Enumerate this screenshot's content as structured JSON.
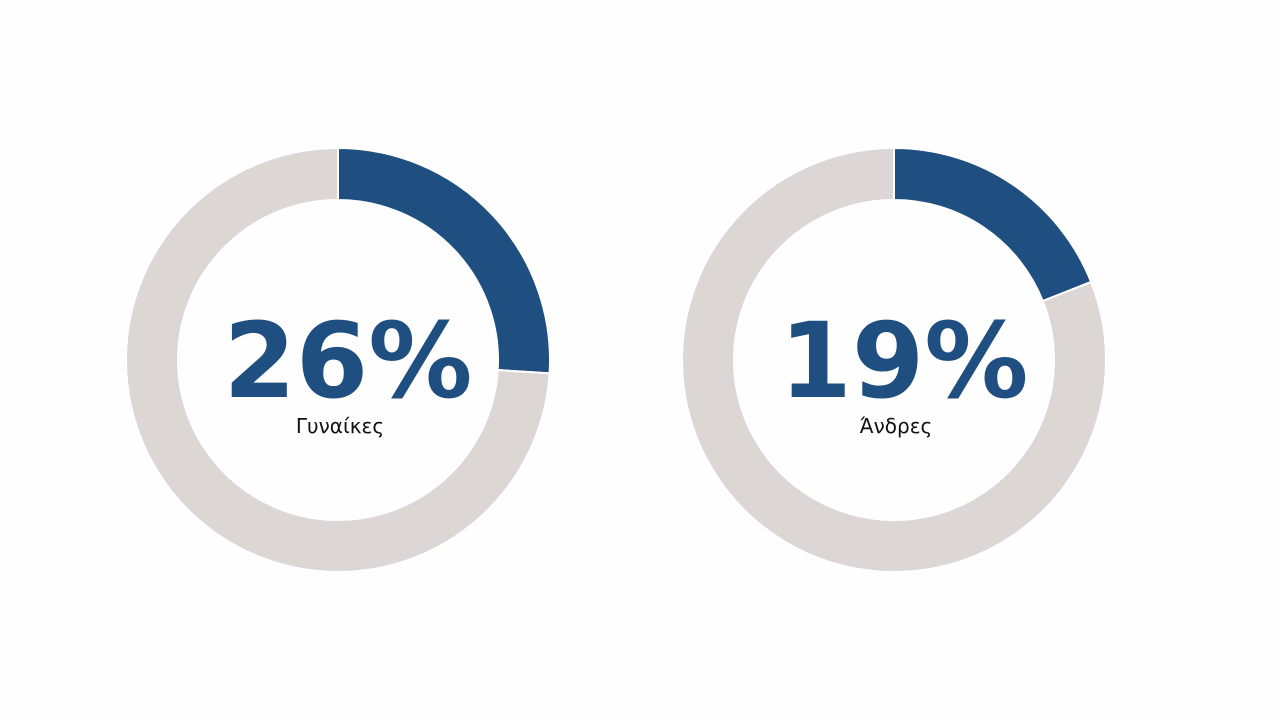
{
  "chart_data": [
    {
      "type": "donut",
      "values": [
        26,
        74
      ],
      "value_labels": [
        "26%",
        null
      ],
      "label": "Γυναίκες",
      "colors": [
        "#1f4e80",
        "#dcd7d5"
      ]
    },
    {
      "type": "donut",
      "values": [
        19,
        81
      ],
      "value_labels": [
        "19%",
        null
      ],
      "label": "Άνδρες",
      "colors": [
        "#1f4e80",
        "#dcd7d5"
      ]
    }
  ]
}
